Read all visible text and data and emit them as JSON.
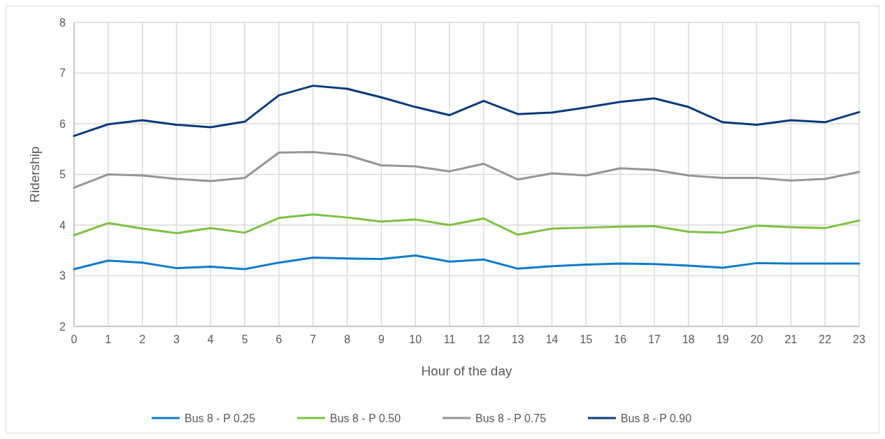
{
  "chart_data": {
    "type": "line",
    "xlabel": "Hour of the day",
    "ylabel": "Ridership",
    "x": [
      0,
      1,
      2,
      3,
      4,
      5,
      6,
      7,
      8,
      9,
      10,
      11,
      12,
      13,
      14,
      15,
      16,
      17,
      18,
      19,
      20,
      21,
      22,
      23
    ],
    "xlim": [
      0,
      23
    ],
    "xticks": [
      0,
      1,
      2,
      3,
      4,
      5,
      6,
      7,
      8,
      9,
      10,
      11,
      12,
      13,
      14,
      15,
      16,
      17,
      18,
      19,
      20,
      21,
      22,
      23
    ],
    "ylim": [
      2,
      8
    ],
    "yticks": [
      2,
      3,
      4,
      5,
      6,
      7,
      8
    ],
    "grid": true,
    "legend": "bottom",
    "marker": "none",
    "line_style": "solid",
    "series": [
      {
        "name": "Bus 8 - P 0.25",
        "color": "#0f7bc9",
        "values": [
          3.13,
          3.3,
          3.26,
          3.15,
          3.18,
          3.13,
          3.26,
          3.36,
          3.34,
          3.33,
          3.4,
          3.28,
          3.32,
          3.14,
          3.19,
          3.22,
          3.24,
          3.23,
          3.2,
          3.16,
          3.25,
          3.24,
          3.24,
          3.24
        ]
      },
      {
        "name": "Bus 8 - P 0.50",
        "color": "#7cc242",
        "values": [
          3.8,
          4.04,
          3.93,
          3.84,
          3.94,
          3.85,
          4.14,
          4.21,
          4.15,
          4.07,
          4.11,
          4.0,
          4.13,
          3.81,
          3.93,
          3.95,
          3.97,
          3.98,
          3.87,
          3.85,
          3.99,
          3.96,
          3.94,
          4.09
        ]
      },
      {
        "name": "Bus 8 - P 0.75",
        "color": "#959597",
        "values": [
          4.74,
          5.0,
          4.98,
          4.91,
          4.87,
          4.93,
          5.43,
          5.44,
          5.38,
          5.18,
          5.16,
          5.06,
          5.21,
          4.9,
          5.02,
          4.98,
          5.12,
          5.09,
          4.98,
          4.93,
          4.93,
          4.88,
          4.91,
          5.05
        ]
      },
      {
        "name": "Bus 8 - P 0.90",
        "color": "#063a7b",
        "values": [
          5.76,
          5.99,
          6.07,
          5.98,
          5.93,
          6.04,
          6.56,
          6.75,
          6.69,
          6.52,
          6.33,
          6.17,
          6.45,
          6.19,
          6.22,
          6.32,
          6.43,
          6.5,
          6.33,
          6.03,
          5.98,
          6.07,
          6.03,
          6.23
        ]
      }
    ]
  }
}
